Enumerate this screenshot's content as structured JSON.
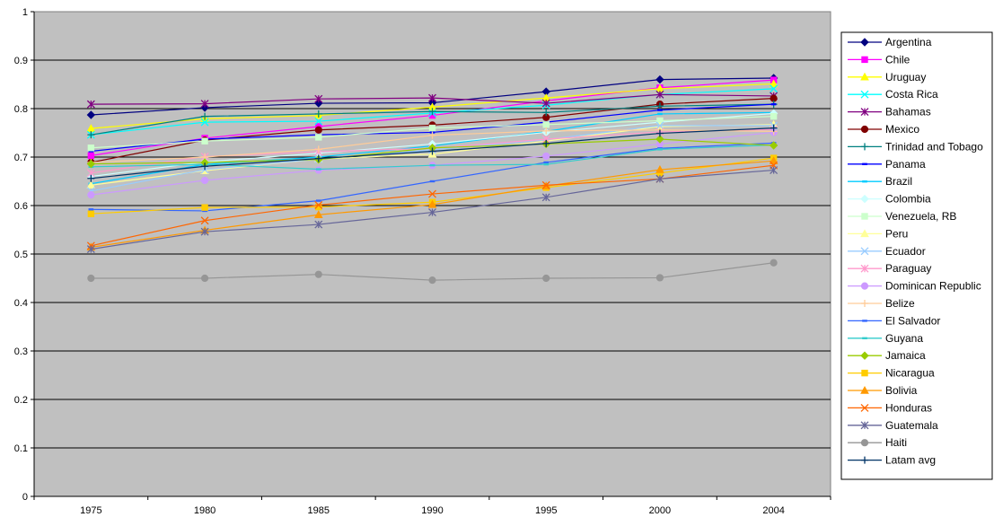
{
  "chart_data": {
    "type": "line",
    "title": "",
    "xlabel": "",
    "ylabel": "",
    "ylim": [
      0,
      1
    ],
    "y_ticks": [
      "0",
      "0.1",
      "0.2",
      "0.3",
      "0.4",
      "0.5",
      "0.6",
      "0.7",
      "0.8",
      "0.9",
      "1"
    ],
    "x_ticks": [
      "1975",
      "1980",
      "1985",
      "1990",
      "1995",
      "2000",
      "2004"
    ],
    "grid": "horizontal",
    "plot_background": "#C0C0C0",
    "legend_placement": "right",
    "series": [
      {
        "name": "Argentina",
        "color": "#000080",
        "marker": "diamond",
        "values": [
          0.787,
          0.802,
          0.811,
          0.812,
          0.835,
          0.86,
          0.863
        ]
      },
      {
        "name": "Chile",
        "color": "#FF00FF",
        "marker": "square",
        "values": [
          0.703,
          0.739,
          0.763,
          0.786,
          0.816,
          0.843,
          0.859
        ]
      },
      {
        "name": "Uruguay",
        "color": "#FFFF00",
        "marker": "triangle",
        "values": [
          0.759,
          0.779,
          0.786,
          0.803,
          0.822,
          0.841,
          0.851
        ]
      },
      {
        "name": "Costa Rica",
        "color": "#00FFFF",
        "marker": "x",
        "values": [
          0.746,
          0.772,
          0.774,
          0.791,
          0.807,
          0.829,
          0.841
        ]
      },
      {
        "name": "Bahamas",
        "color": "#800080",
        "marker": "star",
        "values": [
          0.809,
          0.81,
          0.82,
          0.822,
          0.811,
          0.829,
          0.826
        ]
      },
      {
        "name": "Mexico",
        "color": "#800000",
        "marker": "circle",
        "values": [
          0.689,
          0.735,
          0.756,
          0.766,
          0.782,
          0.809,
          0.821
        ]
      },
      {
        "name": "Trinidad and Tobago",
        "color": "#008080",
        "marker": "plus",
        "values": [
          0.746,
          0.784,
          0.789,
          0.794,
          0.792,
          0.805,
          0.809
        ]
      },
      {
        "name": "Panama",
        "color": "#0000FF",
        "marker": "dash",
        "values": [
          0.712,
          0.737,
          0.746,
          0.751,
          0.772,
          0.797,
          0.809
        ]
      },
      {
        "name": "Brazil",
        "color": "#00CCFF",
        "marker": "dash",
        "values": [
          0.645,
          0.685,
          0.7,
          0.723,
          0.753,
          0.789,
          0.792
        ]
      },
      {
        "name": "Colombia",
        "color": "#CCFFFF",
        "marker": "diamond",
        "values": [
          0.66,
          0.69,
          0.708,
          0.727,
          0.751,
          0.772,
          0.79
        ]
      },
      {
        "name": "Venezuela, RB",
        "color": "#CCFFCC",
        "marker": "square",
        "values": [
          0.719,
          0.733,
          0.741,
          0.76,
          0.767,
          0.775,
          0.784
        ]
      },
      {
        "name": "Peru",
        "color": "#FFFF99",
        "marker": "triangle",
        "values": [
          0.642,
          0.672,
          0.696,
          0.706,
          0.733,
          0.763,
          0.767
        ]
      },
      {
        "name": "Ecuador",
        "color": "#99CCFF",
        "marker": "x",
        "values": [
          0.63,
          0.674,
          0.696,
          0.715,
          0.736,
          0.765,
          0.765
        ]
      },
      {
        "name": "Paraguay",
        "color": "#FF99CC",
        "marker": "star",
        "values": [
          0.667,
          0.701,
          0.711,
          0.718,
          0.737,
          0.752,
          0.757
        ]
      },
      {
        "name": "Dominican Republic",
        "color": "#CC99FF",
        "marker": "circle",
        "values": [
          0.622,
          0.652,
          0.673,
          0.683,
          0.702,
          0.727,
          0.751
        ]
      },
      {
        "name": "Belize",
        "color": "#FFCC99",
        "marker": "plus",
        "values": [
          0.689,
          0.7,
          0.716,
          0.745,
          0.754,
          0.756,
          0.753
        ]
      },
      {
        "name": "El Salvador",
        "color": "#3366FF",
        "marker": "dash",
        "values": [
          0.592,
          0.589,
          0.61,
          0.65,
          0.689,
          0.718,
          0.729
        ]
      },
      {
        "name": "Guyana",
        "color": "#33CCCC",
        "marker": "dash",
        "values": [
          0.68,
          0.685,
          0.675,
          0.683,
          0.685,
          0.716,
          0.725
        ]
      },
      {
        "name": "Jamaica",
        "color": "#99CC00",
        "marker": "diamond",
        "values": [
          0.686,
          0.689,
          0.695,
          0.719,
          0.727,
          0.737,
          0.724
        ]
      },
      {
        "name": "Nicaragua",
        "color": "#FFCC00",
        "marker": "square",
        "values": [
          0.583,
          0.596,
          0.597,
          0.607,
          0.637,
          0.667,
          0.698
        ]
      },
      {
        "name": "Bolivia",
        "color": "#FF9900",
        "marker": "triangle",
        "values": [
          0.514,
          0.549,
          0.581,
          0.602,
          0.64,
          0.674,
          0.692
        ]
      },
      {
        "name": "Honduras",
        "color": "#FF6600",
        "marker": "x",
        "values": [
          0.517,
          0.569,
          0.601,
          0.624,
          0.642,
          0.655,
          0.683
        ]
      },
      {
        "name": "Guatemala",
        "color": "#666699",
        "marker": "star",
        "values": [
          0.51,
          0.546,
          0.561,
          0.586,
          0.617,
          0.655,
          0.673
        ]
      },
      {
        "name": "Haiti",
        "color": "#969696",
        "marker": "circle",
        "values": [
          0.45,
          0.45,
          0.458,
          0.446,
          0.45,
          0.451,
          0.482
        ]
      },
      {
        "name": "Latam avg",
        "color": "#003366",
        "marker": "plus",
        "values": [
          0.656,
          0.681,
          0.697,
          0.712,
          0.728,
          0.749,
          0.76
        ]
      }
    ]
  }
}
